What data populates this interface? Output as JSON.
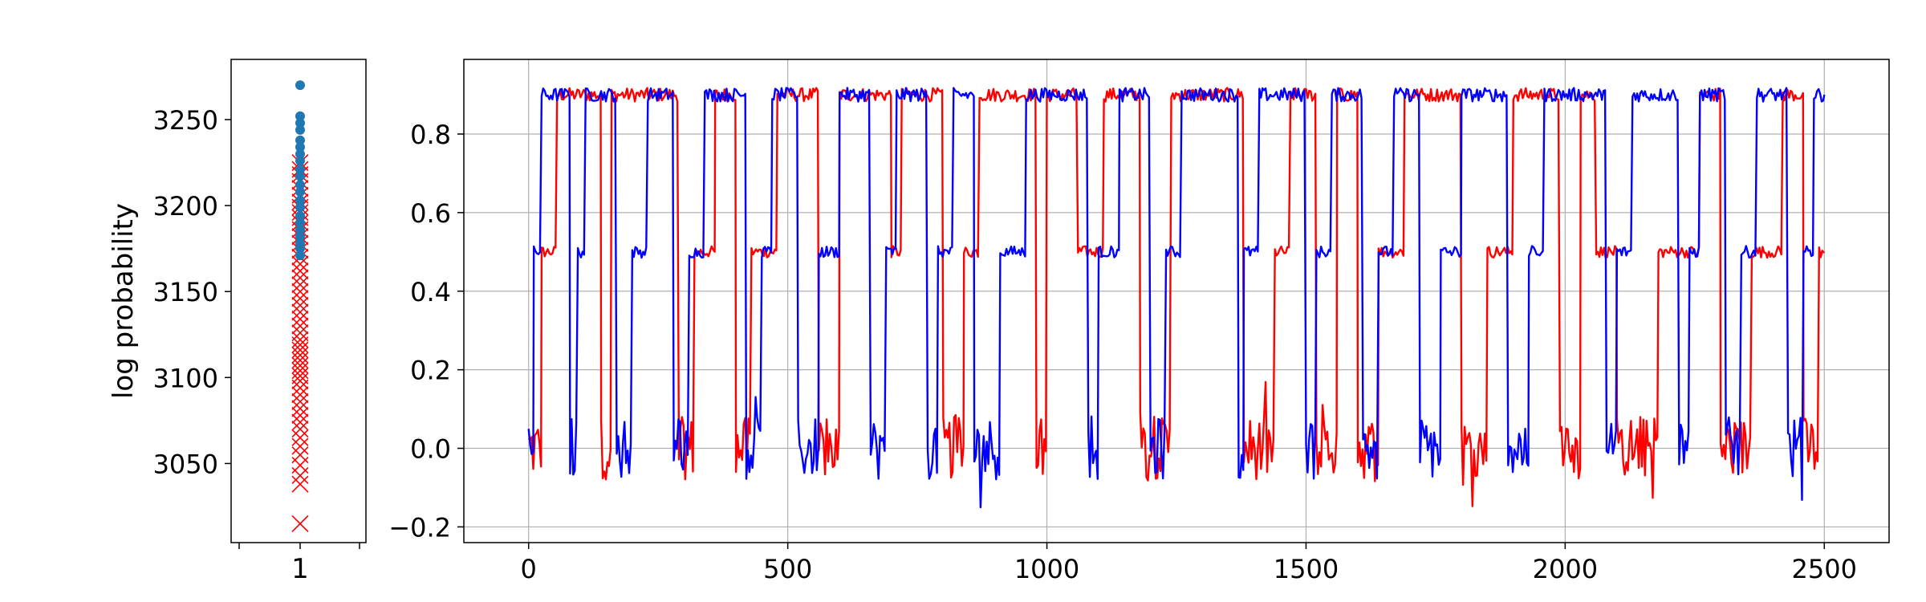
{
  "chart_data": [
    {
      "type": "scatter",
      "title": "",
      "xlabel": "",
      "ylabel": "log probability",
      "xticks": [
        "1"
      ],
      "yticks": [
        3050,
        3100,
        3150,
        3200,
        3250
      ],
      "ylim": [
        3004,
        3285
      ],
      "grid": false,
      "series": [
        {
          "marker": "circle",
          "color": "#1f77b4",
          "x": [
            1,
            1,
            1,
            1,
            1,
            1,
            1,
            1,
            1,
            1,
            1,
            1,
            1,
            1,
            1,
            1,
            1,
            1,
            1,
            1,
            1
          ],
          "y": [
            3270,
            3252,
            3248,
            3244,
            3238,
            3234,
            3230,
            3226,
            3221,
            3217,
            3212,
            3208,
            3203,
            3199,
            3194,
            3190,
            3186,
            3182,
            3178,
            3175,
            3171
          ]
        },
        {
          "marker": "x",
          "color": "#ff0000",
          "x": [
            1,
            1,
            1,
            1,
            1,
            1,
            1,
            1,
            1,
            1,
            1,
            1,
            1,
            1,
            1,
            1,
            1,
            1,
            1,
            1,
            1,
            1,
            1,
            1,
            1,
            1,
            1,
            1,
            1,
            1,
            1,
            1,
            1,
            1,
            1,
            1,
            1,
            1,
            1,
            1,
            1,
            1,
            1,
            1,
            1,
            1,
            1,
            1,
            1,
            1
          ],
          "y": [
            3225,
            3221,
            3218,
            3214,
            3210,
            3206,
            3202,
            3199,
            3196,
            3193,
            3190,
            3186,
            3182,
            3178,
            3174,
            3170,
            3166,
            3162,
            3158,
            3154,
            3150,
            3146,
            3142,
            3138,
            3134,
            3130,
            3126,
            3122,
            3119,
            3116,
            3113,
            3110,
            3107,
            3104,
            3101,
            3098,
            3094,
            3090,
            3086,
            3082,
            3078,
            3074,
            3070,
            3065,
            3060,
            3055,
            3049,
            3043,
            3038,
            3015
          ]
        }
      ]
    },
    {
      "type": "line",
      "title": "",
      "xlabel": "",
      "ylabel": "",
      "xlim": [
        -125,
        2625
      ],
      "ylim": [
        -0.24,
        0.99
      ],
      "xticks": [
        0,
        500,
        1000,
        1500,
        2000,
        2500
      ],
      "yticks": [
        -0.2,
        0.0,
        0.2,
        0.4,
        0.6,
        0.8
      ],
      "ytick_labels": [
        "−0.2",
        "0.0",
        "0.2",
        "0.4",
        "0.6",
        "0.8"
      ],
      "grid": true,
      "x_range": [
        0,
        2500
      ],
      "series": [
        {
          "color": "#ff0000",
          "segments": [
            [
              0,
              0.0
            ],
            [
              25,
              0.5
            ],
            [
              55,
              0.9
            ],
            [
              140,
              0.0
            ],
            [
              160,
              0.9
            ],
            [
              230,
              0.9
            ],
            [
              290,
              0.0
            ],
            [
              320,
              0.5
            ],
            [
              360,
              0.9
            ],
            [
              400,
              0.0
            ],
            [
              430,
              0.5
            ],
            [
              480,
              0.9
            ],
            [
              560,
              0.0
            ],
            [
              600,
              0.9
            ],
            [
              700,
              0.5
            ],
            [
              720,
              0.9
            ],
            [
              800,
              0.0
            ],
            [
              840,
              0.5
            ],
            [
              870,
              0.9
            ],
            [
              980,
              0.0
            ],
            [
              1000,
              0.9
            ],
            [
              1060,
              0.5
            ],
            [
              1110,
              0.9
            ],
            [
              1180,
              0.0
            ],
            [
              1240,
              0.9
            ],
            [
              1300,
              0.9
            ],
            [
              1380,
              0.0
            ],
            [
              1440,
              0.5
            ],
            [
              1470,
              0.9
            ],
            [
              1520,
              0.0
            ],
            [
              1560,
              0.9
            ],
            [
              1600,
              0.0
            ],
            [
              1640,
              0.5
            ],
            [
              1690,
              0.9
            ],
            [
              1800,
              0.0
            ],
            [
              1850,
              0.5
            ],
            [
              1900,
              0.9
            ],
            [
              1990,
              0.0
            ],
            [
              2030,
              0.9
            ],
            [
              2060,
              0.5
            ],
            [
              2100,
              0.0
            ],
            [
              2180,
              0.5
            ],
            [
              2260,
              0.9
            ],
            [
              2300,
              0.0
            ],
            [
              2360,
              0.5
            ],
            [
              2420,
              0.9
            ],
            [
              2460,
              0.0
            ],
            [
              2490,
              0.5
            ],
            [
              2500,
              0.5
            ]
          ]
        },
        {
          "color": "#0000ff",
          "segments": [
            [
              0,
              0.0
            ],
            [
              10,
              0.5
            ],
            [
              25,
              0.9
            ],
            [
              80,
              0.0
            ],
            [
              95,
              0.5
            ],
            [
              110,
              0.9
            ],
            [
              170,
              0.0
            ],
            [
              200,
              0.5
            ],
            [
              230,
              0.9
            ],
            [
              280,
              0.0
            ],
            [
              310,
              0.5
            ],
            [
              340,
              0.9
            ],
            [
              420,
              0.0
            ],
            [
              450,
              0.5
            ],
            [
              470,
              0.9
            ],
            [
              520,
              0.0
            ],
            [
              560,
              0.5
            ],
            [
              600,
              0.9
            ],
            [
              660,
              0.0
            ],
            [
              690,
              0.5
            ],
            [
              710,
              0.9
            ],
            [
              770,
              0.0
            ],
            [
              790,
              0.5
            ],
            [
              820,
              0.9
            ],
            [
              860,
              0.0
            ],
            [
              910,
              0.5
            ],
            [
              960,
              0.9
            ],
            [
              1080,
              0.0
            ],
            [
              1100,
              0.5
            ],
            [
              1140,
              0.9
            ],
            [
              1200,
              0.0
            ],
            [
              1230,
              0.5
            ],
            [
              1260,
              0.9
            ],
            [
              1370,
              0.0
            ],
            [
              1380,
              0.5
            ],
            [
              1410,
              0.9
            ],
            [
              1500,
              0.0
            ],
            [
              1520,
              0.5
            ],
            [
              1550,
              0.9
            ],
            [
              1610,
              0.0
            ],
            [
              1640,
              0.5
            ],
            [
              1670,
              0.9
            ],
            [
              1720,
              0.0
            ],
            [
              1760,
              0.5
            ],
            [
              1800,
              0.9
            ],
            [
              1890,
              0.0
            ],
            [
              1930,
              0.5
            ],
            [
              1960,
              0.9
            ],
            [
              2080,
              0.0
            ],
            [
              2100,
              0.5
            ],
            [
              2130,
              0.9
            ],
            [
              2220,
              0.0
            ],
            [
              2240,
              0.5
            ],
            [
              2260,
              0.9
            ],
            [
              2310,
              0.0
            ],
            [
              2340,
              0.5
            ],
            [
              2370,
              0.9
            ],
            [
              2430,
              0.0
            ],
            [
              2460,
              0.5
            ],
            [
              2480,
              0.9
            ],
            [
              2500,
              0.9
            ]
          ]
        }
      ]
    }
  ]
}
